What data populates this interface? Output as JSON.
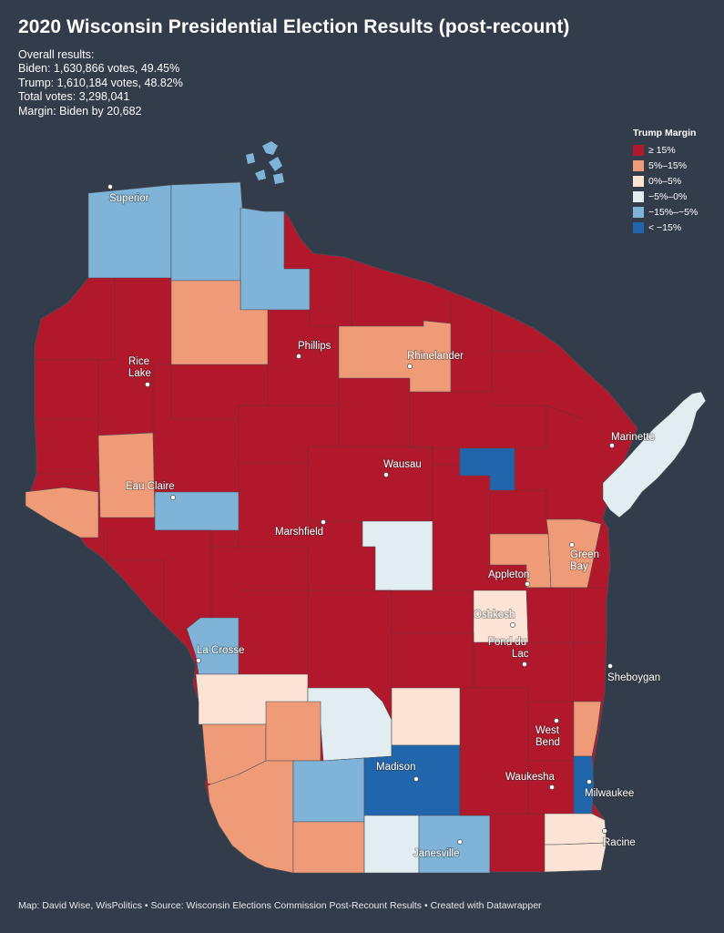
{
  "title": "2020 Wisconsin Presidential Election Results (post-recount)",
  "summary": {
    "heading": "Overall results:",
    "biden": "Biden: 1,630,866 votes, 49.45%",
    "trump": "Trump: 1,610,184 votes, 48.82%",
    "total": "Total votes: 3,298,041",
    "margin": "Margin: Biden by 20,682"
  },
  "legend": {
    "title": "Trump Margin",
    "items": [
      {
        "label": "≥ 15%",
        "color": "#b2182b"
      },
      {
        "label": "5%–15%",
        "color": "#ef9b78"
      },
      {
        "label": "0%–5%",
        "color": "#fbe4d5"
      },
      {
        "label": "−5%–0%",
        "color": "#e1edf0"
      },
      {
        "label": "−15%–−5%",
        "color": "#7fb3d8"
      },
      {
        "label": "< −15%",
        "color": "#2166ac"
      }
    ]
  },
  "cities": [
    {
      "name": "Superior"
    },
    {
      "name": "Rice"
    },
    {
      "name": "Lake"
    },
    {
      "name": "Phillips"
    },
    {
      "name": "Rhinelander"
    },
    {
      "name": "Marinette"
    },
    {
      "name": "Eau Claire"
    },
    {
      "name": "Wausau"
    },
    {
      "name": "Marshfield"
    },
    {
      "name": "Green"
    },
    {
      "name": "Bay"
    },
    {
      "name": "Appleton"
    },
    {
      "name": "Oshkosh"
    },
    {
      "name": "Fond du"
    },
    {
      "name": "Lac"
    },
    {
      "name": "La Crosse"
    },
    {
      "name": "Sheboygan"
    },
    {
      "name": "West"
    },
    {
      "name": "Bend"
    },
    {
      "name": "Madison"
    },
    {
      "name": "Waukesha"
    },
    {
      "name": "Milwaukee"
    },
    {
      "name": "Janesville"
    },
    {
      "name": "Racine"
    }
  ],
  "footer": "Map: David Wise, WisPolitics • Source: Wisconsin Elections Commission Post-Recount Results • Created with Datawrapper"
}
